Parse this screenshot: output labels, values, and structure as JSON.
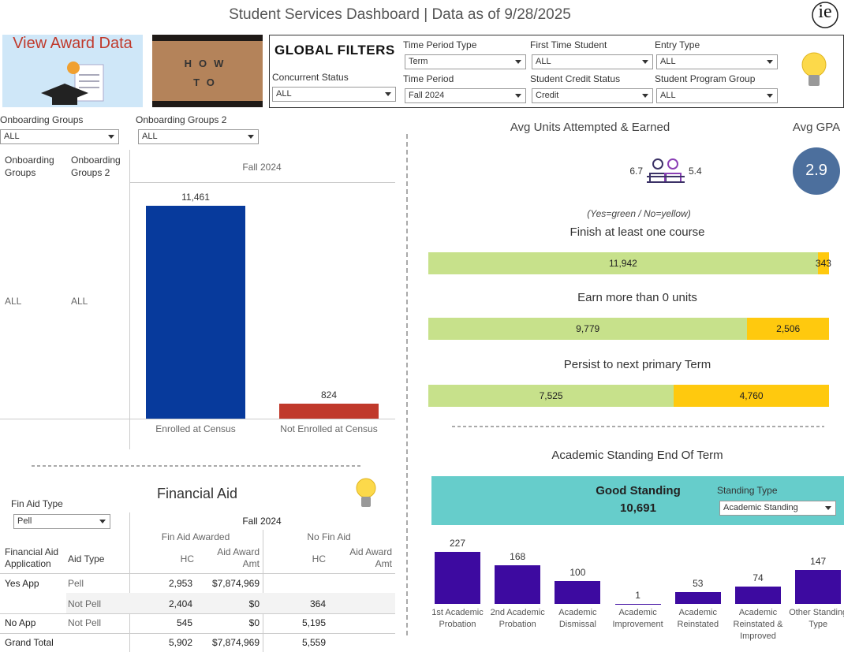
{
  "header": {
    "title": "Student Services Dashboard | Data as of 9/28/2025",
    "logo": "ie"
  },
  "tiles": {
    "award": "View Award Data",
    "how_to": [
      "HOW",
      "TO"
    ]
  },
  "global_filters": {
    "title": "GLOBAL FILTERS",
    "filters": [
      {
        "label": "Concurrent Status",
        "value": "ALL"
      },
      {
        "label": "Time Period Type",
        "value": "Term"
      },
      {
        "label": "Time Period",
        "value": "Fall 2024"
      },
      {
        "label": "First Time Student",
        "value": "ALL"
      },
      {
        "label": "Student Credit Status",
        "value": "Credit"
      },
      {
        "label": "Entry Type",
        "value": "ALL"
      },
      {
        "label": "Student Program Group",
        "value": "ALL"
      }
    ]
  },
  "onboarding_filters": [
    {
      "label": "Onboarding Groups",
      "value": "ALL"
    },
    {
      "label": "Onboarding Groups 2",
      "value": "ALL"
    }
  ],
  "kpis": {
    "units_title": "Avg Units Attempted & Earned",
    "units_attempted": 6.7,
    "units_earned": 5.4,
    "gpa_title": "Avg GPA",
    "gpa": 2.9
  },
  "chart_data": [
    {
      "type": "bar",
      "column_header": "Fall 2024",
      "row_headers": [
        "Onboarding Groups",
        "Onboarding Groups 2"
      ],
      "row_values": [
        "ALL",
        "ALL"
      ],
      "categories": [
        "Enrolled at Census",
        "Not Enrolled at Census"
      ],
      "values": [
        11461,
        824
      ],
      "value_labels": [
        "11,461",
        "824"
      ],
      "colors": [
        "#073a9c",
        "#c0392b"
      ]
    },
    {
      "type": "stacked_barh",
      "note": "(Yes=green / No=yellow)",
      "categories": [
        "Finish at least one course",
        "Earn more than 0 units",
        "Persist to next primary Term"
      ],
      "series": [
        {
          "color": "#c7e18b",
          "values": [
            11942,
            9779,
            7525
          ],
          "value_labels": [
            "11,942",
            "9,779",
            "7,525"
          ]
        },
        {
          "color": "#ffc90e",
          "values": [
            343,
            2506,
            4760
          ],
          "value_labels": [
            "343",
            "2,506",
            "4,760"
          ]
        }
      ]
    },
    {
      "type": "bar",
      "title": "Academic Standing End Of Term",
      "kpi_label": "Good Standing",
      "kpi_value": 10691,
      "kpi_value_label": "10,691",
      "filter": {
        "label": "Standing Type",
        "value": "Academic Standing"
      },
      "categories": [
        "1st Academic Probation",
        "2nd Academic Probation",
        "Academic Dismissal",
        "Academic Improvement",
        "Academic Reinstated",
        "Academic Reinstated & Improved",
        "Other Standing Type"
      ],
      "values": [
        227,
        168,
        100,
        1,
        53,
        74,
        147
      ],
      "color": "#3d0aa0"
    }
  ],
  "financial_aid": {
    "title": "Financial Aid",
    "filter": {
      "label": "Fin Aid Type",
      "value": "Pell"
    },
    "column_header": "Fall 2024",
    "groups": [
      "Fin Aid Awarded",
      "No Fin Aid"
    ],
    "measures": [
      "HC",
      "Aid Award Amt"
    ],
    "row_headers": [
      "Financial Aid Application",
      "Aid Type"
    ],
    "rows": [
      [
        "Yes App",
        "Pell",
        "2,953",
        "$7,874,969",
        null,
        null
      ],
      [
        null,
        "Not Pell",
        "2,404",
        "$0",
        "364",
        null
      ],
      [
        "No App",
        "Not Pell",
        "545",
        "$0",
        "5,195",
        null
      ],
      [
        "Grand Total",
        null,
        "5,902",
        "$7,874,969",
        "5,559",
        null
      ]
    ]
  }
}
